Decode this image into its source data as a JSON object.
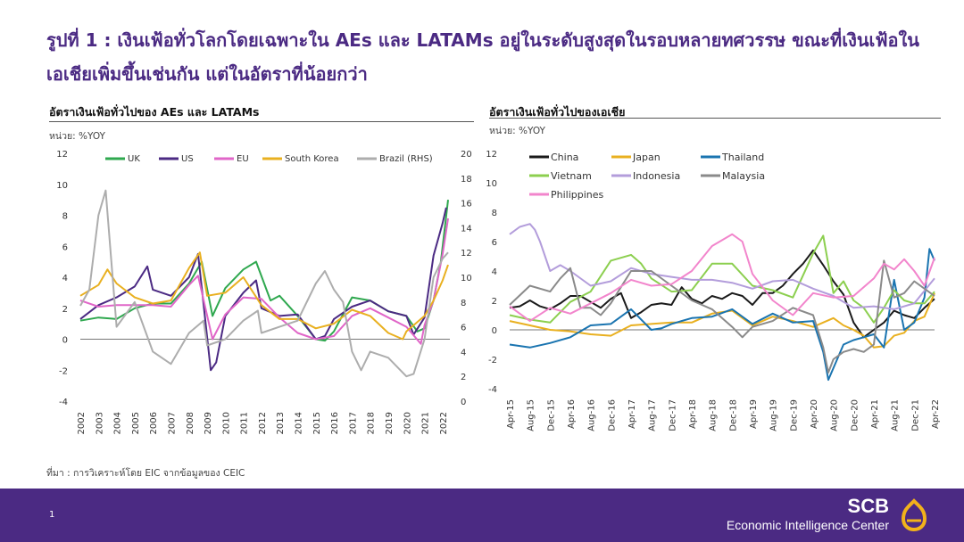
{
  "page": {
    "title": "รูปที่ 1 : เงินเฟ้อทั่วโลกโดยเฉพาะใน AEs และ LATAMs อยู่ในระดับสูงสุดในรอบหลายทศวรรษ ขณะที่เงินเฟ้อในเอเชียเพิ่มขึ้นเช่นกัน แต่ในอัตราที่น้อยกว่า",
    "source": "ที่มา : การวิเคราะห์โดย EIC จากข้อมูลของ CEIC",
    "page_number": "1",
    "brand_name": "SCB",
    "brand_sub": "Economic Intelligence Center"
  },
  "chart_data": [
    {
      "type": "line",
      "title": "อัตราเงินเฟ้อทั่วไปของ AEs และ LATAMs",
      "unit": "หน่วย: %YOY",
      "xlabel": "",
      "ylabel": "",
      "ylim": [
        -4,
        12
      ],
      "y_ticks": [
        "12",
        "10",
        "8",
        "6",
        "4",
        "2",
        "0",
        "-2",
        "-4"
      ],
      "y2lim": [
        0,
        20
      ],
      "y2_ticks": [
        "20",
        "18",
        "16",
        "14",
        "12",
        "10",
        "8",
        "6",
        "4",
        "2",
        "0"
      ],
      "x_range": [
        2002,
        2022.4
      ],
      "x_ticks": [
        "2002",
        "2003",
        "2004",
        "2005",
        "2006",
        "2007",
        "2008",
        "2009",
        "2010",
        "2011",
        "2012",
        "2013",
        "2014",
        "2015",
        "2016",
        "2017",
        "2018",
        "2019",
        "2020",
        "2021",
        "2022"
      ],
      "grid": false,
      "legend_position": "top",
      "series": [
        {
          "name": "UK",
          "color": "#2fa84f",
          "axis": "left",
          "x": [
            2002,
            2003,
            2004,
            2005,
            2006,
            2007,
            2008,
            2008.7,
            2009.3,
            2010,
            2011,
            2011.7,
            2012.5,
            2013,
            2014,
            2015,
            2015.5,
            2016,
            2017,
            2018,
            2019,
            2020,
            2020.6,
            2021,
            2021.5,
            2021.9,
            2022.3
          ],
          "y": [
            1.2,
            1.4,
            1.3,
            2.0,
            2.3,
            2.3,
            3.6,
            5.0,
            1.5,
            3.3,
            4.5,
            5.0,
            2.5,
            2.8,
            1.5,
            0.0,
            -0.1,
            0.5,
            2.7,
            2.5,
            1.8,
            1.5,
            0.5,
            0.7,
            2.5,
            5.0,
            9.0
          ]
        },
        {
          "name": "US",
          "color": "#4b2a83",
          "axis": "left",
          "x": [
            2002,
            2003,
            2004,
            2005,
            2005.7,
            2006,
            2007,
            2008,
            2008.5,
            2009.2,
            2009.5,
            2010,
            2011,
            2011.7,
            2012,
            2013,
            2014,
            2015,
            2015.5,
            2016,
            2017,
            2018,
            2019,
            2020,
            2020.4,
            2021,
            2021.5,
            2022,
            2022.2
          ],
          "y": [
            1.3,
            2.2,
            2.7,
            3.4,
            4.7,
            3.2,
            2.8,
            4.0,
            5.5,
            -2.0,
            -1.5,
            1.5,
            3.0,
            3.8,
            2.0,
            1.5,
            1.6,
            0.0,
            0.2,
            1.3,
            2.1,
            2.5,
            1.8,
            1.5,
            0.3,
            1.4,
            5.4,
            7.5,
            8.5
          ]
        },
        {
          "name": "EU",
          "color": "#e066c8",
          "axis": "left",
          "x": [
            2002,
            2003,
            2004,
            2005,
            2006,
            2007,
            2008,
            2008.5,
            2009.3,
            2010,
            2011,
            2012,
            2013,
            2014,
            2015,
            2016,
            2017,
            2018,
            2019,
            2020,
            2020.8,
            2021,
            2021.5,
            2022,
            2022.3
          ],
          "y": [
            2.5,
            2.1,
            2.2,
            2.2,
            2.2,
            2.1,
            3.5,
            4.1,
            0.0,
            1.6,
            2.7,
            2.6,
            1.4,
            0.4,
            0.0,
            0.2,
            1.5,
            2.0,
            1.4,
            0.8,
            -0.3,
            0.9,
            2.5,
            5.5,
            7.8
          ]
        },
        {
          "name": "South Korea",
          "color": "#e9b020",
          "axis": "left",
          "x": [
            2002,
            2003,
            2003.5,
            2004,
            2005,
            2006,
            2007,
            2008,
            2008.6,
            2009,
            2010,
            2011,
            2012,
            2013,
            2014,
            2015,
            2016,
            2017,
            2018,
            2019,
            2019.8,
            2020,
            2021,
            2021.5,
            2022,
            2022.3
          ],
          "y": [
            2.8,
            3.5,
            4.5,
            3.6,
            2.7,
            2.3,
            2.5,
            4.6,
            5.6,
            2.8,
            3.0,
            4.0,
            2.2,
            1.3,
            1.3,
            0.7,
            1.0,
            1.9,
            1.5,
            0.4,
            0.0,
            0.5,
            1.5,
            2.5,
            3.8,
            4.8
          ]
        },
        {
          "name": "Brazil (RHS)",
          "color": "#adadad",
          "axis": "right",
          "x": [
            2002,
            2002.5,
            2003,
            2003.4,
            2004,
            2005,
            2006,
            2007,
            2008,
            2008.8,
            2009,
            2010,
            2011,
            2011.8,
            2012,
            2013,
            2014,
            2015,
            2015.5,
            2016,
            2016.5,
            2017,
            2017.5,
            2018,
            2019,
            2020,
            2020.4,
            2021,
            2021.5,
            2022,
            2022.3
          ],
          "y": [
            7.7,
            9.0,
            15.0,
            17.0,
            6.0,
            8.0,
            4.0,
            3.0,
            5.5,
            6.5,
            4.5,
            5.0,
            6.5,
            7.3,
            5.5,
            6.0,
            6.5,
            9.5,
            10.5,
            9.0,
            8.0,
            4.0,
            2.5,
            4.0,
            3.5,
            2.0,
            2.2,
            5.0,
            10.0,
            11.5,
            12.0
          ]
        }
      ]
    },
    {
      "type": "line",
      "title": "อัตราเงินเฟ้อทั่วไปของเอเชีย",
      "unit": "หน่วย: %YOY",
      "xlabel": "",
      "ylabel": "",
      "ylim": [
        -4,
        12
      ],
      "y_ticks": [
        "12",
        "10",
        "8",
        "6",
        "4",
        "2",
        "0",
        "-2",
        "-4"
      ],
      "x_ticks": [
        "Apr-15",
        "Aug-15",
        "Dec-15",
        "Apr-16",
        "Aug-16",
        "Dec-16",
        "Apr-17",
        "Aug-17",
        "Dec-17",
        "Apr-18",
        "Aug-18",
        "Dec-18",
        "Apr-19",
        "Aug-19",
        "Dec-19",
        "Apr-20",
        "Aug-20",
        "Dec-20",
        "Apr-21",
        "Aug-21",
        "Dec-21",
        "Apr-22"
      ],
      "grid": false,
      "legend_position": "top-left",
      "series": [
        {
          "name": "China",
          "color": "#1a1a1a",
          "x": [
            0,
            2,
            4,
            6,
            8,
            10,
            12,
            14,
            16,
            18,
            20,
            22,
            24,
            26,
            28,
            30,
            32,
            34,
            36,
            38,
            40,
            42,
            44,
            46,
            48,
            50,
            52,
            54,
            56,
            58,
            60,
            62,
            64,
            66,
            68,
            70,
            72,
            74,
            76,
            78,
            80,
            82,
            84
          ],
          "y": [
            1.5,
            1.6,
            2.0,
            1.6,
            1.4,
            1.8,
            2.3,
            2.3,
            1.9,
            1.5,
            2.1,
            2.5,
            0.8,
            1.2,
            1.7,
            1.8,
            1.7,
            2.9,
            2.1,
            1.8,
            2.3,
            2.1,
            2.5,
            2.3,
            1.7,
            2.5,
            2.5,
            3.0,
            3.8,
            4.5,
            5.4,
            4.4,
            3.3,
            2.4,
            0.5,
            -0.5,
            0.0,
            0.5,
            1.3,
            1.0,
            0.8,
            1.5,
            2.1
          ]
        },
        {
          "name": "Japan",
          "color": "#e9b020",
          "x": [
            0,
            4,
            8,
            12,
            16,
            20,
            24,
            28,
            32,
            36,
            40,
            44,
            48,
            52,
            56,
            60,
            64,
            66,
            68,
            70,
            72,
            74,
            76,
            78,
            80,
            82,
            84
          ],
          "y": [
            0.6,
            0.3,
            0.0,
            -0.1,
            -0.3,
            -0.4,
            0.3,
            0.4,
            0.5,
            0.5,
            1.1,
            1.3,
            0.3,
            0.9,
            0.6,
            0.2,
            0.8,
            0.3,
            0.0,
            -0.4,
            -1.2,
            -1.1,
            -0.4,
            -0.2,
            0.6,
            0.9,
            2.5
          ]
        },
        {
          "name": "Thailand",
          "color": "#1a74b0",
          "x": [
            0,
            4,
            8,
            12,
            16,
            20,
            24,
            28,
            30,
            32,
            36,
            40,
            44,
            48,
            52,
            56,
            60,
            62,
            63,
            64,
            66,
            68,
            70,
            72,
            74,
            76,
            78,
            80,
            82,
            83,
            84
          ],
          "y": [
            -1.0,
            -1.2,
            -0.9,
            -0.5,
            0.3,
            0.4,
            1.4,
            0.0,
            0.1,
            0.4,
            0.8,
            0.9,
            1.4,
            0.4,
            1.1,
            0.5,
            0.6,
            -1.5,
            -3.4,
            -2.6,
            -1.0,
            -0.7,
            -0.5,
            -0.3,
            -1.2,
            3.4,
            0.0,
            0.5,
            2.2,
            5.5,
            4.7
          ]
        },
        {
          "name": "Vietnam",
          "color": "#8ccf4f",
          "x": [
            0,
            4,
            8,
            12,
            16,
            20,
            24,
            26,
            28,
            32,
            36,
            40,
            44,
            48,
            52,
            56,
            60,
            62,
            64,
            66,
            68,
            70,
            72,
            74,
            76,
            78,
            80,
            82,
            84
          ],
          "y": [
            1.0,
            0.7,
            0.5,
            1.9,
            2.6,
            4.7,
            5.1,
            4.5,
            3.5,
            2.6,
            2.7,
            4.5,
            4.5,
            3.0,
            2.7,
            2.2,
            5.2,
            6.4,
            2.5,
            3.3,
            2.0,
            1.5,
            0.5,
            1.5,
            2.7,
            2.0,
            1.8,
            1.8,
            2.6
          ]
        },
        {
          "name": "Indonesia",
          "color": "#b39ddb",
          "x": [
            0,
            2,
            4,
            5,
            6,
            8,
            10,
            12,
            16,
            20,
            24,
            28,
            32,
            36,
            40,
            44,
            48,
            52,
            56,
            60,
            64,
            68,
            72,
            76,
            80,
            84
          ],
          "y": [
            6.5,
            7.0,
            7.2,
            6.8,
            6.0,
            4.0,
            4.4,
            4.0,
            3.0,
            3.3,
            4.2,
            3.8,
            3.6,
            3.4,
            3.4,
            3.2,
            2.8,
            3.3,
            3.4,
            2.8,
            2.3,
            1.5,
            1.6,
            1.4,
            1.8,
            3.5
          ]
        },
        {
          "name": "Malaysia",
          "color": "#8a8a8a",
          "x": [
            0,
            4,
            8,
            10,
            12,
            14,
            16,
            18,
            20,
            24,
            28,
            32,
            36,
            40,
            44,
            46,
            48,
            52,
            56,
            60,
            62,
            63,
            64,
            66,
            68,
            70,
            72,
            74,
            76,
            78,
            80,
            82,
            84
          ],
          "y": [
            1.7,
            3.0,
            2.6,
            3.5,
            4.2,
            1.5,
            1.5,
            1.0,
            1.8,
            4.0,
            4.0,
            3.0,
            2.0,
            1.4,
            0.2,
            -0.5,
            0.2,
            0.6,
            1.5,
            1.0,
            -1.2,
            -2.9,
            -2.0,
            -1.5,
            -1.3,
            -1.5,
            -1.0,
            4.7,
            2.2,
            2.5,
            3.3,
            2.8,
            2.3
          ]
        },
        {
          "name": "Philippines",
          "color": "#f285cc",
          "x": [
            0,
            4,
            8,
            12,
            16,
            20,
            24,
            28,
            32,
            36,
            40,
            44,
            46,
            48,
            52,
            56,
            60,
            64,
            68,
            72,
            74,
            76,
            78,
            80,
            82,
            84
          ],
          "y": [
            1.6,
            0.6,
            1.5,
            1.1,
            1.8,
            2.5,
            3.4,
            3.0,
            3.1,
            4.0,
            5.7,
            6.5,
            6.0,
            3.8,
            2.0,
            1.0,
            2.5,
            2.2,
            2.3,
            3.5,
            4.5,
            4.1,
            4.8,
            4.0,
            3.0,
            4.9
          ]
        }
      ]
    }
  ]
}
